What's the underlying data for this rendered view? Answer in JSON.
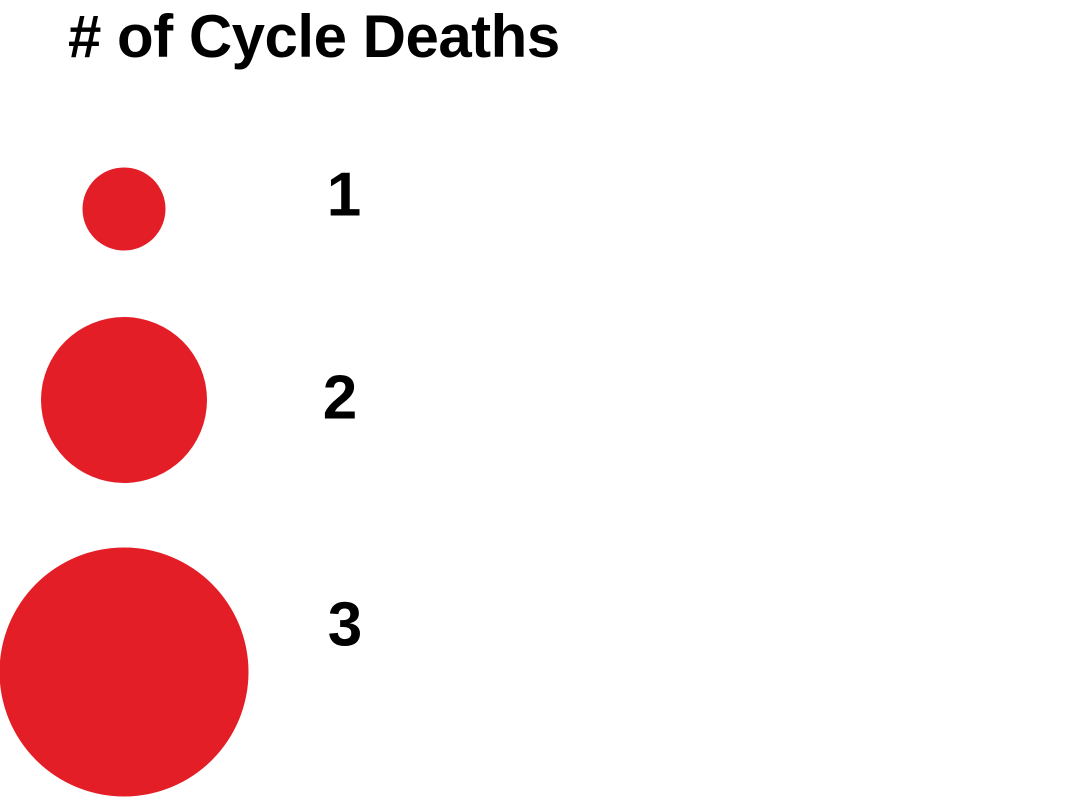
{
  "chart_data": {
    "type": "bubble-legend",
    "title": "# of Cycle Deaths",
    "entries": [
      {
        "label": "1",
        "value": 1
      },
      {
        "label": "2",
        "value": 2
      },
      {
        "label": "3",
        "value": 3
      }
    ],
    "color": "#e41e26",
    "text_color": "#000000"
  }
}
